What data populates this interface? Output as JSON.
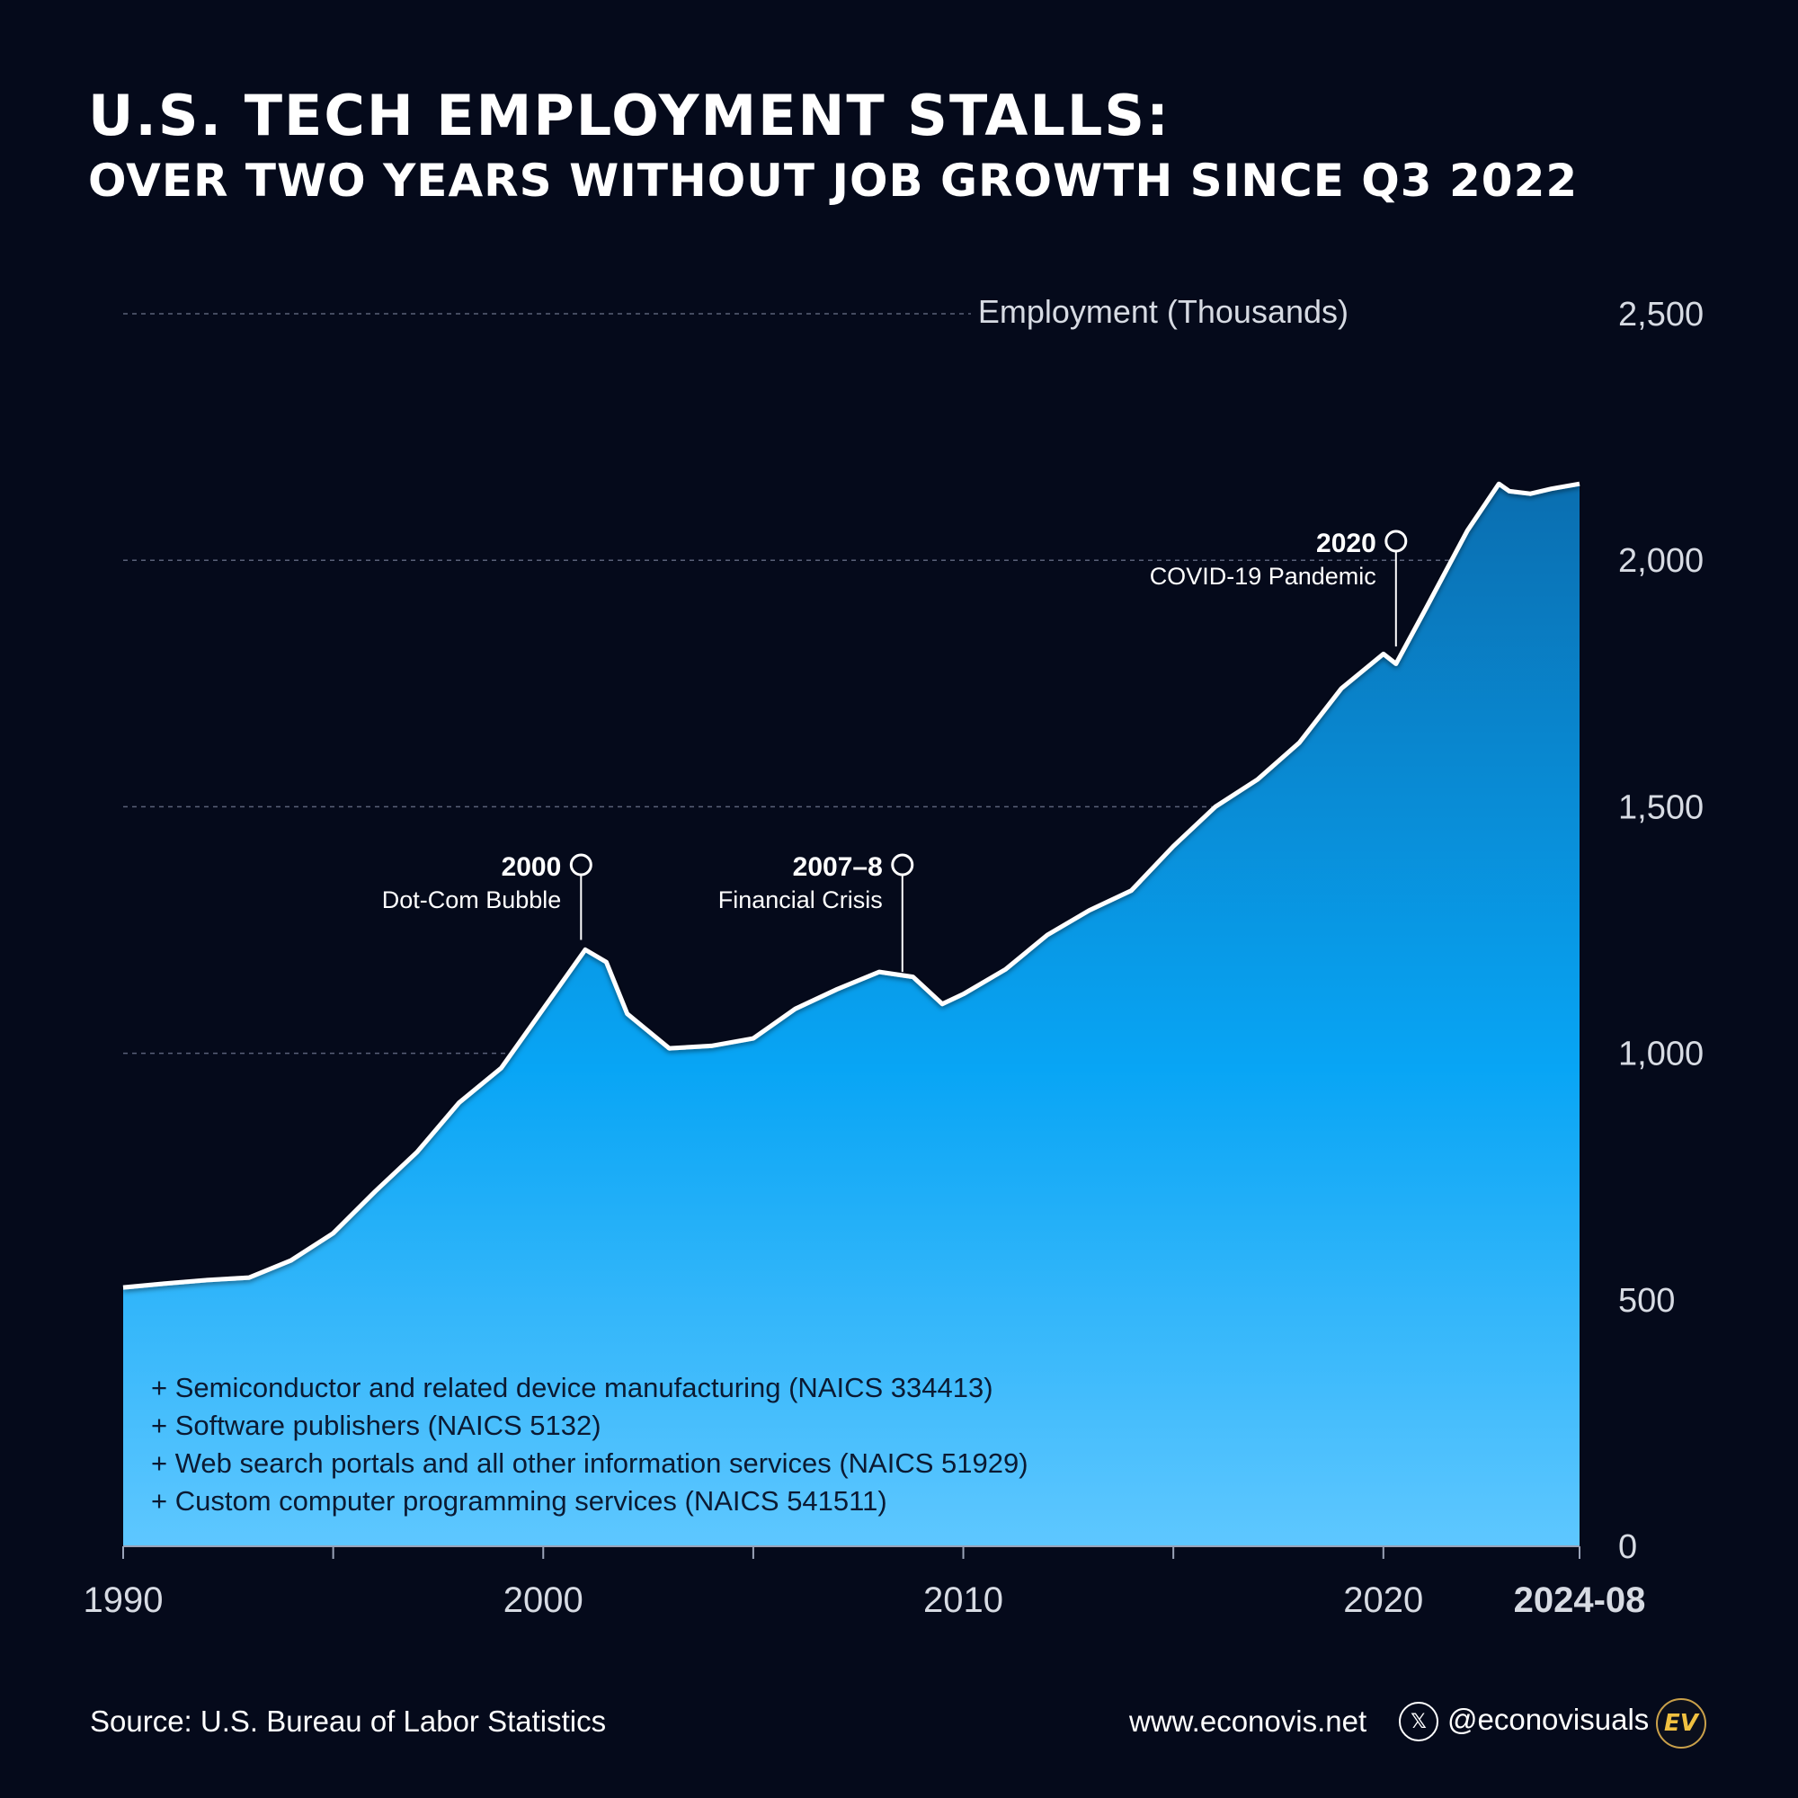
{
  "header": {
    "title": "U.S. TECH EMPLOYMENT STALLS:",
    "subtitle": "OVER TWO YEARS WITHOUT JOB GROWTH SINCE Q3 2022"
  },
  "chart_data": {
    "type": "area",
    "ylabel": "Employment (Thousands)",
    "ylim": [
      0,
      2500
    ],
    "yticks": [
      0,
      500,
      1000,
      1500,
      2000,
      2500
    ],
    "ytick_labels": [
      "0",
      "500",
      "1,000",
      "1,500",
      "2,000",
      "2,500"
    ],
    "xlim": [
      1990,
      2024.67
    ],
    "xticks": [
      1990,
      1995,
      2000,
      2005,
      2010,
      2015,
      2020,
      2024.67
    ],
    "xtick_labels": [
      "1990",
      "",
      "2000",
      "",
      "2010",
      "",
      "2020",
      "2024-08"
    ],
    "grid": "horizontal dashed",
    "series": [
      {
        "x": [
          1990,
          1991,
          1992,
          1993,
          1994,
          1995,
          1996,
          1997,
          1998,
          1999,
          2000,
          2001,
          2001.5,
          2002,
          2003,
          2004,
          2005,
          2006,
          2007,
          2008,
          2008.8,
          2009.5,
          2010,
          2011,
          2012,
          2013,
          2014,
          2015,
          2016,
          2017,
          2018,
          2019,
          2020,
          2020.3,
          2021,
          2022,
          2022.75,
          2023,
          2023.5,
          2024,
          2024.67
        ],
        "values": [
          525,
          533,
          540,
          545,
          580,
          635,
          720,
          800,
          900,
          970,
          1090,
          1210,
          1185,
          1080,
          1010,
          1015,
          1030,
          1090,
          1130,
          1165,
          1155,
          1100,
          1120,
          1170,
          1240,
          1290,
          1330,
          1420,
          1500,
          1555,
          1630,
          1740,
          1810,
          1790,
          1900,
          2060,
          2155,
          2140,
          2135,
          2145,
          2155
        ]
      }
    ],
    "annotations": [
      {
        "year": "2000",
        "label": "Dot-Com Bubble",
        "x": 2000.9,
        "y": 1230
      },
      {
        "year": "2007–8",
        "label": "Financial Crisis",
        "x": 2008.55,
        "y": 1165
      },
      {
        "year": "2020",
        "label": "COVID-19 Pandemic",
        "x": 2020.3,
        "y": 1825
      }
    ],
    "legend": [
      "+ Semiconductor and related device manufacturing (NAICS  334413)",
      "+ Software publishers (NAICS 5132)",
      "+ Web search portals and all other information services (NAICS 51929)",
      "+ Custom computer programming services (NAICS 541511)"
    ]
  },
  "footer": {
    "source": "Source: U.S. Bureau of Labor Statistics",
    "url": "www.econovis.net",
    "handle": "@econovisuals",
    "x_icon": "x-logo-icon",
    "logo_text": "EV"
  },
  "colors": {
    "background": "#050a1b",
    "area_top": "#0a6eb0",
    "area_mid": "#08a5f5",
    "area_bottom": "#5ec7ff",
    "line": "#ffffff"
  }
}
